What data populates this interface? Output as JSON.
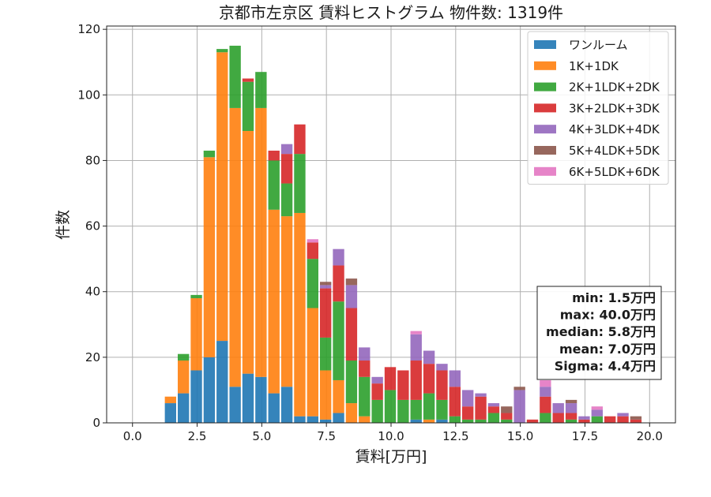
{
  "chart_data": {
    "type": "bar",
    "stacked": true,
    "title": "京都市左京区 賃料ヒストグラム 物件数: 1319件",
    "xlabel": "賃料[万円]",
    "ylabel": "件数",
    "xlim": [
      -1,
      21
    ],
    "ylim": [
      0,
      121
    ],
    "xticks": [
      0.0,
      2.5,
      5.0,
      7.5,
      10.0,
      12.5,
      15.0,
      17.5,
      20.0
    ],
    "yticks": [
      0,
      20,
      40,
      60,
      80,
      100,
      120
    ],
    "grid": true,
    "legend_position": "top-right",
    "bin_width": 0.5,
    "x": [
      1.5,
      2.0,
      2.5,
      3.0,
      3.5,
      4.0,
      4.5,
      5.0,
      5.5,
      6.0,
      6.5,
      7.0,
      7.5,
      8.0,
      8.5,
      9.0,
      9.5,
      10.0,
      10.5,
      11.0,
      11.5,
      12.0,
      12.5,
      13.0,
      13.5,
      14.0,
      14.5,
      15.0,
      15.5,
      16.0,
      16.5,
      17.0,
      17.5,
      18.0,
      18.5,
      19.0,
      19.5
    ],
    "series": [
      {
        "name": "ワンルーム",
        "color": "#1f77b4",
        "values": [
          6,
          9,
          16,
          20,
          25,
          11,
          15,
          14,
          9,
          11,
          2,
          2,
          1,
          3,
          0,
          0,
          0,
          0,
          0,
          1,
          0,
          1,
          0,
          0,
          0,
          0,
          0,
          0,
          0,
          0,
          0,
          0,
          0,
          0,
          0,
          0,
          0
        ]
      },
      {
        "name": "1K+1DK",
        "color": "#ff7f0e",
        "values": [
          2,
          10,
          22,
          61,
          88,
          85,
          74,
          82,
          56,
          52,
          62,
          33,
          15,
          10,
          6,
          2,
          0,
          0,
          0,
          0,
          1,
          0,
          0,
          0,
          0,
          0,
          0,
          0,
          0,
          0,
          0,
          0,
          0,
          0,
          0,
          0,
          0
        ]
      },
      {
        "name": "2K+1LDK+2DK",
        "color": "#2ca02c",
        "values": [
          0,
          2,
          1,
          2,
          1,
          19,
          15,
          11,
          15,
          10,
          18,
          15,
          10,
          24,
          13,
          12,
          7,
          10,
          7,
          6,
          8,
          6,
          2,
          1,
          1,
          3,
          1,
          0,
          0,
          3,
          0,
          1,
          0,
          2,
          0,
          0,
          0
        ]
      },
      {
        "name": "3K+2LDK+3DK",
        "color": "#d62728",
        "values": [
          0,
          0,
          0,
          0,
          0,
          0,
          1,
          0,
          3,
          9,
          9,
          5,
          15,
          11,
          16,
          5,
          5,
          7,
          9,
          12,
          9,
          9,
          9,
          4,
          7,
          2,
          2,
          0,
          1,
          5,
          3,
          2,
          1,
          0,
          2,
          2,
          1
        ]
      },
      {
        "name": "4K+3LDK+4DK",
        "color": "#9467bd",
        "values": [
          0,
          0,
          0,
          0,
          0,
          0,
          0,
          0,
          0,
          3,
          0,
          0,
          1,
          5,
          7,
          4,
          2,
          0,
          0,
          8,
          4,
          2,
          5,
          5,
          1,
          1,
          0,
          10,
          0,
          3,
          3,
          3,
          1,
          2,
          0,
          1,
          0
        ]
      },
      {
        "name": "5K+4LDK+5DK",
        "color": "#8c564b",
        "values": [
          0,
          0,
          0,
          0,
          0,
          0,
          0,
          0,
          0,
          0,
          0,
          0,
          1,
          0,
          2,
          0,
          0,
          0,
          0,
          0,
          0,
          0,
          0,
          0,
          0,
          0,
          2,
          1,
          0,
          0,
          0,
          1,
          0,
          0,
          0,
          0,
          1
        ]
      },
      {
        "name": "6K+5LDK+6DK",
        "color": "#e377c2",
        "values": [
          0,
          0,
          0,
          0,
          0,
          0,
          0,
          0,
          0,
          0,
          0,
          1,
          0,
          0,
          0,
          0,
          0,
          0,
          0,
          1,
          0,
          0,
          0,
          0,
          0,
          0,
          0,
          0,
          0,
          2,
          0,
          0,
          0,
          1,
          0,
          0,
          0
        ]
      }
    ],
    "stats": [
      "min: 1.5万円",
      "max: 40.0万円",
      "median: 5.8万円",
      "mean: 7.0万円",
      "Sigma: 4.4万円"
    ]
  }
}
